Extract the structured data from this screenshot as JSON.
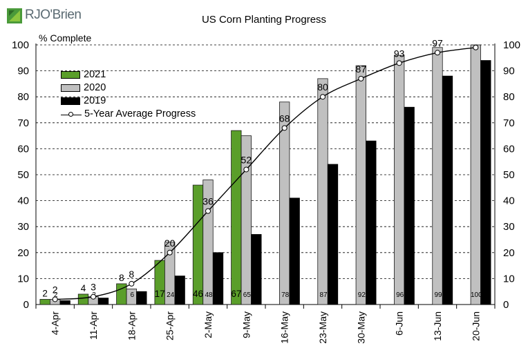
{
  "branding": {
    "logo_text": "RJO'Brien",
    "logo_icon": "rjo-brien-logo-icon"
  },
  "chart_data": {
    "type": "bar",
    "title": "US Corn Planting Progress",
    "ylabel": "% Complete",
    "xlabel": "",
    "ylim": [
      0,
      100
    ],
    "yticks": [
      0,
      10,
      20,
      30,
      40,
      50,
      60,
      70,
      80,
      90,
      100
    ],
    "secondary_axis": true,
    "grid": "horizontal-dashed",
    "legend_position": "top-left",
    "categories": [
      "4-Apr",
      "11-Apr",
      "18-Apr",
      "25-Apr",
      "2-May",
      "9-May",
      "16-May",
      "23-May",
      "30-May",
      "6-Jun",
      "13-Jun",
      "20-Jun"
    ],
    "series": [
      {
        "name": "2021",
        "type": "bar",
        "color": "#5a9e2a",
        "values": [
          2,
          4,
          8,
          17,
          46,
          67,
          null,
          null,
          null,
          null,
          null,
          null
        ],
        "labels": [
          "2",
          "4",
          "8",
          "17",
          "46",
          "67",
          "",
          "",
          "",
          "",
          "",
          ""
        ]
      },
      {
        "name": "2020",
        "type": "bar",
        "color": "#c0c0c0",
        "values": [
          2,
          3,
          6,
          24,
          48,
          65,
          78,
          87,
          92,
          96,
          99,
          100
        ],
        "labels": [
          "2",
          "3",
          "6",
          "24",
          "48",
          "65",
          "78",
          "87",
          "92",
          "96",
          "99",
          "100"
        ]
      },
      {
        "name": "2019",
        "type": "bar",
        "color": "#000000",
        "values": [
          1.5,
          2.5,
          5,
          11,
          20,
          27,
          41,
          54,
          63,
          76,
          88,
          94
        ]
      },
      {
        "name": "5-Year Average Progress",
        "type": "line",
        "color": "#000000",
        "values": [
          2,
          3,
          8,
          20,
          36,
          52,
          68,
          80,
          87,
          93,
          97,
          99
        ],
        "labels": [
          "2",
          "3",
          "8",
          "20",
          "36",
          "52",
          "68",
          "80",
          "87",
          "93",
          "97",
          ""
        ]
      }
    ]
  }
}
